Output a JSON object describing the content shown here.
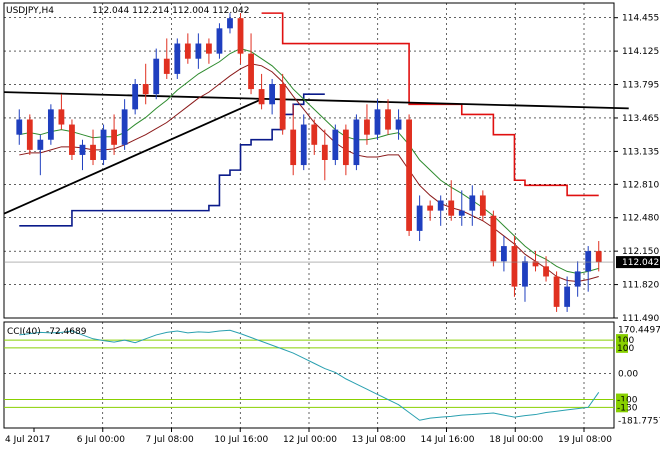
{
  "header": {
    "symbol": "USDJPY,H4",
    "ohlc": "112.044 112.214 112.004 112.042"
  },
  "colors": {
    "bull": "#1f3fbf",
    "bear": "#e03020",
    "ma_fast": "#2e8b2e",
    "ma_slow": "#8b1a1a",
    "channel_upper": "#e01010",
    "channel_lower": "#0a1a8a",
    "trendline": "#000000",
    "cci_line": "#2aa0b0",
    "cci_levels": "#88d000",
    "grid": "#000000"
  },
  "chart_data": [
    {
      "type": "candlestick",
      "title": "USDJPY,H4",
      "ylim": [
        111.49,
        114.6
      ],
      "y_ticks": [
        "114.455",
        "114.125",
        "113.795",
        "113.465",
        "113.135",
        "112.810",
        "112.480",
        "112.150",
        "111.820",
        "111.490"
      ],
      "current_price": "112.042",
      "x_ticks": [
        "4 Jul 2017",
        "6 Jul 00:00",
        "7 Jul 08:00",
        "10 Jul 16:00",
        "12 Jul 00:00",
        "13 Jul 08:00",
        "14 Jul 16:00",
        "18 Jul 00:00",
        "19 Jul 08:00"
      ],
      "candles": [
        [
          113.3,
          113.55,
          113.2,
          113.45
        ],
        [
          113.45,
          113.5,
          113.1,
          113.15
        ],
        [
          113.15,
          113.3,
          112.9,
          113.25
        ],
        [
          113.25,
          113.6,
          113.2,
          113.55
        ],
        [
          113.55,
          113.7,
          113.35,
          113.4
        ],
        [
          113.4,
          113.45,
          113.05,
          113.1
        ],
        [
          113.1,
          113.25,
          112.95,
          113.2
        ],
        [
          113.2,
          113.35,
          113.0,
          113.05
        ],
        [
          113.05,
          113.4,
          113.0,
          113.35
        ],
        [
          113.35,
          113.5,
          113.1,
          113.2
        ],
        [
          113.2,
          113.65,
          113.15,
          113.55
        ],
        [
          113.55,
          113.85,
          113.5,
          113.8
        ],
        [
          113.8,
          114.0,
          113.6,
          113.7
        ],
        [
          113.7,
          114.15,
          113.65,
          114.05
        ],
        [
          114.05,
          114.25,
          113.85,
          113.9
        ],
        [
          113.9,
          114.25,
          113.85,
          114.2
        ],
        [
          114.2,
          114.3,
          114.0,
          114.05
        ],
        [
          114.05,
          114.3,
          113.95,
          114.2
        ],
        [
          114.2,
          114.25,
          114.0,
          114.1
        ],
        [
          114.1,
          114.4,
          114.05,
          114.35
        ],
        [
          114.35,
          114.5,
          114.3,
          114.45
        ],
        [
          114.45,
          114.5,
          114.0,
          114.1
        ],
        [
          114.1,
          114.3,
          113.7,
          113.75
        ],
        [
          113.75,
          113.9,
          113.55,
          113.6
        ],
        [
          113.6,
          113.85,
          113.5,
          113.8
        ],
        [
          113.8,
          113.9,
          113.3,
          113.35
        ],
        [
          113.35,
          113.6,
          112.9,
          113.0
        ],
        [
          113.0,
          113.5,
          112.95,
          113.4
        ],
        [
          113.4,
          113.45,
          113.1,
          113.2
        ],
        [
          113.2,
          113.35,
          112.85,
          113.05
        ],
        [
          113.05,
          113.4,
          113.0,
          113.35
        ],
        [
          113.35,
          113.4,
          112.9,
          113.0
        ],
        [
          113.0,
          113.5,
          112.95,
          113.45
        ],
        [
          113.45,
          113.6,
          113.2,
          113.3
        ],
        [
          113.3,
          113.65,
          113.25,
          113.55
        ],
        [
          113.55,
          113.65,
          113.3,
          113.35
        ],
        [
          113.35,
          113.55,
          113.25,
          113.45
        ],
        [
          113.45,
          113.5,
          112.3,
          112.35
        ],
        [
          112.35,
          112.7,
          112.25,
          112.6
        ],
        [
          112.6,
          112.65,
          112.45,
          112.55
        ],
        [
          112.55,
          112.7,
          112.4,
          112.65
        ],
        [
          112.65,
          112.85,
          112.45,
          112.5
        ],
        [
          112.5,
          112.75,
          112.4,
          112.55
        ],
        [
          112.55,
          112.8,
          112.4,
          112.7
        ],
        [
          112.7,
          112.75,
          112.45,
          112.5
        ],
        [
          112.5,
          112.55,
          112.0,
          112.05
        ],
        [
          112.05,
          112.3,
          111.95,
          112.2
        ],
        [
          112.2,
          112.3,
          111.7,
          111.8
        ],
        [
          111.8,
          112.1,
          111.65,
          112.05
        ],
        [
          112.05,
          112.15,
          111.95,
          112.0
        ],
        [
          112.0,
          112.1,
          111.85,
          111.9
        ],
        [
          111.9,
          111.95,
          111.55,
          111.6
        ],
        [
          111.6,
          111.9,
          111.55,
          111.8
        ],
        [
          111.8,
          112.05,
          111.7,
          111.95
        ],
        [
          111.95,
          112.2,
          111.75,
          112.15
        ],
        [
          112.15,
          112.25,
          111.95,
          112.04
        ]
      ],
      "ma_fast": [
        113.3,
        113.32,
        113.3,
        113.33,
        113.35,
        113.33,
        113.3,
        113.27,
        113.28,
        113.28,
        113.32,
        113.4,
        113.47,
        113.56,
        113.64,
        113.74,
        113.82,
        113.9,
        113.96,
        114.02,
        114.1,
        114.15,
        114.12,
        114.05,
        113.98,
        113.88,
        113.75,
        113.65,
        113.55,
        113.45,
        113.35,
        113.28,
        113.25,
        113.25,
        113.27,
        113.3,
        113.32,
        113.2,
        113.05,
        112.95,
        112.85,
        112.78,
        112.72,
        112.65,
        112.58,
        112.5,
        112.4,
        112.3,
        112.2,
        112.12,
        112.07,
        112.0,
        111.95,
        111.93,
        111.95,
        111.98
      ],
      "ma_slow": [
        113.1,
        113.12,
        113.12,
        113.15,
        113.18,
        113.18,
        113.17,
        113.15,
        113.15,
        113.16,
        113.2,
        113.25,
        113.3,
        113.36,
        113.42,
        113.5,
        113.58,
        113.66,
        113.72,
        113.8,
        113.88,
        113.95,
        114.0,
        113.98,
        113.92,
        113.82,
        113.68,
        113.55,
        113.42,
        113.32,
        113.22,
        113.15,
        113.1,
        113.08,
        113.08,
        113.1,
        113.1,
        112.95,
        112.8,
        112.7,
        112.62,
        112.58,
        112.55,
        112.5,
        112.45,
        112.38,
        112.3,
        112.22,
        112.12,
        112.05,
        111.98,
        111.9,
        111.86,
        111.85,
        111.87,
        111.9
      ],
      "channel_upper": [
        null,
        null,
        null,
        null,
        null,
        null,
        null,
        null,
        null,
        null,
        null,
        null,
        null,
        null,
        null,
        null,
        null,
        null,
        null,
        null,
        null,
        null,
        null,
        114.5,
        114.5,
        114.2,
        114.2,
        114.2,
        114.2,
        114.2,
        114.2,
        114.2,
        114.2,
        114.2,
        114.2,
        114.2,
        114.2,
        113.6,
        113.6,
        113.6,
        113.6,
        113.6,
        113.5,
        113.5,
        113.5,
        113.3,
        113.3,
        112.85,
        112.8,
        112.8,
        112.8,
        112.8,
        112.7,
        112.7,
        112.7,
        112.7
      ],
      "channel_lower": [
        112.4,
        112.4,
        112.4,
        112.4,
        112.4,
        112.55,
        112.55,
        112.55,
        112.55,
        112.55,
        112.55,
        112.55,
        112.55,
        112.55,
        112.55,
        112.55,
        112.55,
        112.55,
        112.6,
        112.9,
        112.95,
        113.2,
        113.25,
        113.25,
        113.35,
        113.5,
        113.6,
        113.7,
        113.7,
        113.7
      ]
    },
    {
      "type": "line",
      "title": "CCI(40)",
      "value": "-72.4689",
      "ylim": [
        -210,
        200
      ],
      "y_ticks": [
        "170.4497",
        "100",
        "100",
        "0.00",
        "-100",
        "-130",
        "-181.7757"
      ],
      "levels": [
        130,
        100,
        -100,
        -130
      ],
      "values": [
        150,
        155,
        160,
        158,
        160,
        165,
        150,
        135,
        128,
        122,
        130,
        120,
        135,
        150,
        160,
        165,
        158,
        162,
        160,
        165,
        168,
        155,
        140,
        125,
        110,
        95,
        80,
        60,
        40,
        20,
        5,
        -20,
        -40,
        -60,
        -80,
        -100,
        -120,
        -150,
        -180,
        -172,
        -168,
        -165,
        -160,
        -158,
        -155,
        -152,
        -160,
        -168,
        -162,
        -158,
        -150,
        -145,
        -140,
        -135,
        -130,
        -72
      ]
    }
  ]
}
